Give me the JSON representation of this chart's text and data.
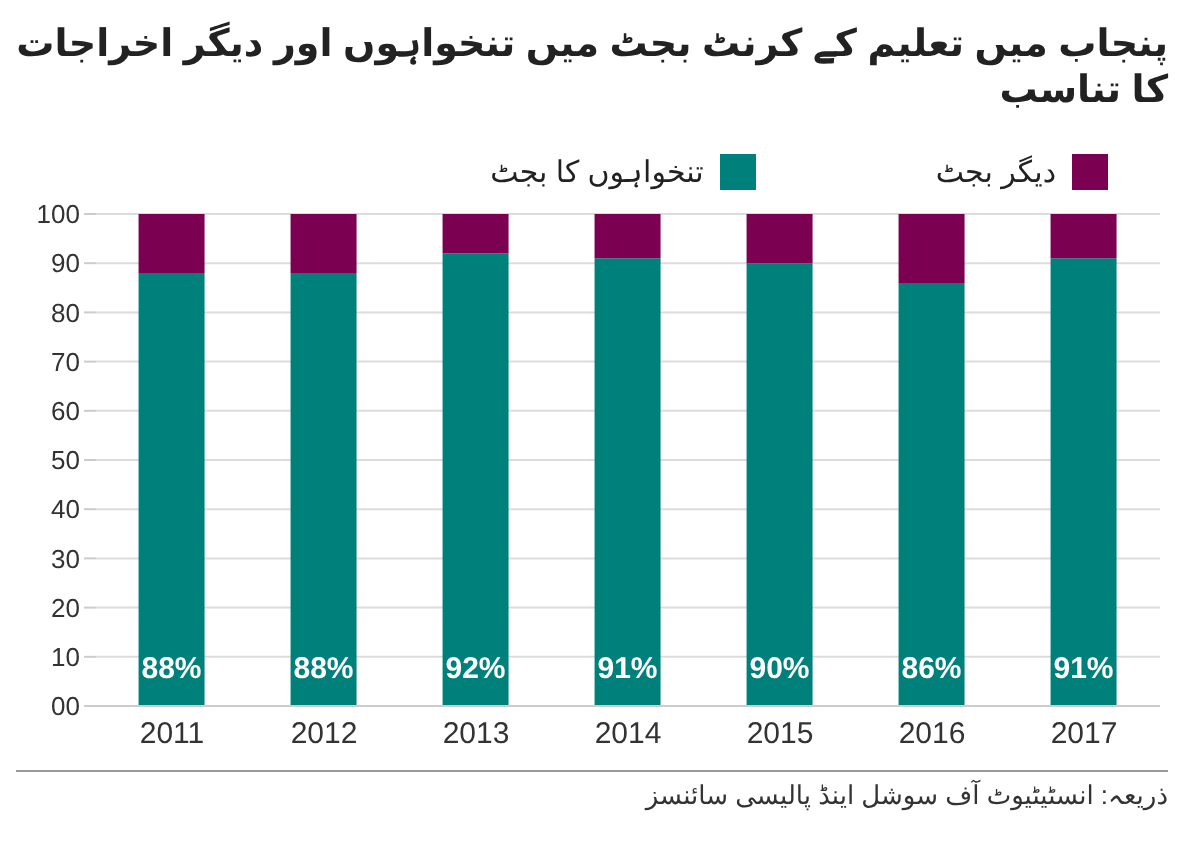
{
  "chart_data": {
    "type": "bar",
    "title": "پنجاب میں تعلیم کے کرنٹ بجٹ میں تنخواہوں اور دیگر اخراجات کا تناسب",
    "categories": [
      "2011",
      "2012",
      "2013",
      "2014",
      "2015",
      "2016",
      "2017"
    ],
    "stacked": true,
    "series": [
      {
        "name": "تنخواہوں کا بجٹ",
        "color": "#00807a",
        "values": [
          88,
          88,
          92,
          91,
          90,
          86,
          91
        ],
        "value_labels": [
          "88%",
          "88%",
          "92%",
          "91%",
          "90%",
          "86%",
          "91%"
        ]
      },
      {
        "name": "دیگر بجٹ",
        "color": "#7b0051",
        "values": [
          12,
          12,
          8,
          9,
          10,
          14,
          9
        ]
      }
    ],
    "ylim": [
      0,
      100
    ],
    "yticks": [
      {
        "value": 0,
        "label": "00"
      },
      10,
      20,
      30,
      40,
      50,
      60,
      70,
      80,
      90,
      100
    ],
    "grid": "y",
    "legend": "top right",
    "annotations": [
      "ذریعہ: انسٹیٹیوٹ آف سوشل اینڈ پالیسی سائنسز"
    ]
  }
}
